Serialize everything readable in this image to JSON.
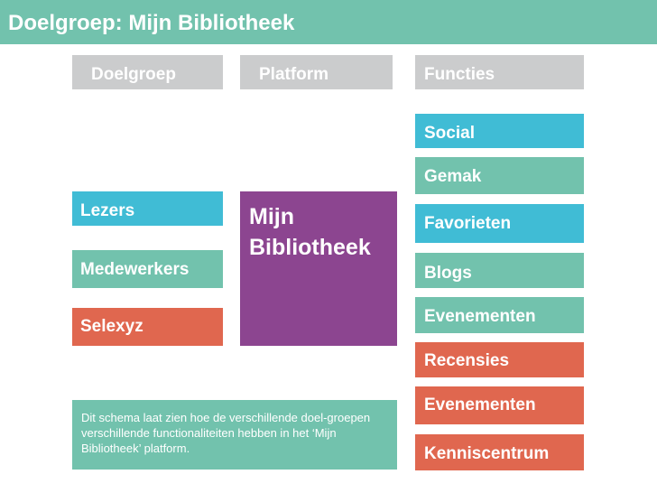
{
  "title": "Doelgroep: Mijn Bibliotheek",
  "colors": {
    "title_bar": "#72c2ad",
    "header_gray": "#cbcccd",
    "cyan": "#40bcd5",
    "teal": "#72c2ad",
    "coral": "#e0674f",
    "purple": "#8c4590"
  },
  "headers": {
    "doelgroep": "Doelgroep",
    "platform": "Platform",
    "functies": "Functies"
  },
  "doelgroepen": [
    {
      "label": "Lezers",
      "color": "cyan"
    },
    {
      "label": "Medewerkers",
      "color": "teal"
    },
    {
      "label": "Selexyz",
      "color": "coral"
    }
  ],
  "platform": {
    "label": "Mijn Bibliotheek",
    "color": "purple"
  },
  "functies": [
    {
      "label": "Social",
      "color": "cyan"
    },
    {
      "label": "Gemak",
      "color": "teal"
    },
    {
      "label": "Favorieten",
      "color": "cyan"
    },
    {
      "label": "Blogs",
      "color": "teal"
    },
    {
      "label": "Evenementen",
      "color": "teal"
    },
    {
      "label": "Recensies",
      "color": "coral"
    },
    {
      "label": "Evenementen",
      "color": "coral"
    },
    {
      "label": "Kenniscentrum",
      "color": "coral"
    }
  ],
  "note": "Dit schema laat zien hoe de verschillende doel-groepen verschillende functionaliteiten hebben in het ‘Mijn Bibliotheek’ platform."
}
